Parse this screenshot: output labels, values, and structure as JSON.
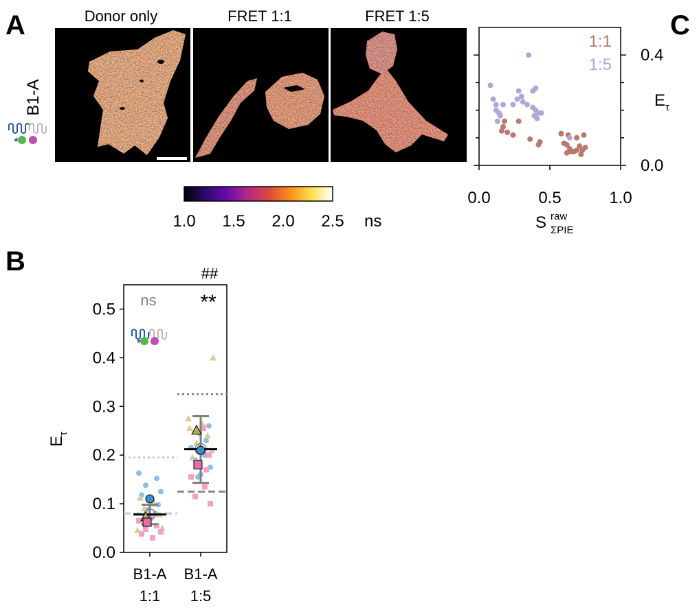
{
  "panels": {
    "a": {
      "letter": "A",
      "row_label": "B1-A",
      "image_titles": [
        "Donor only",
        "FRET 1:1",
        "FRET 1:5"
      ],
      "colorbar": {
        "ticks": [
          "1.0",
          "1.5",
          "2.0",
          "2.5"
        ],
        "unit": "ns",
        "colors": [
          "#000000",
          "#2a0a6e",
          "#6a0aa8",
          "#b02a8c",
          "#e0463c",
          "#f7901a",
          "#fde24a",
          "#ffffff"
        ]
      }
    },
    "b": {
      "letter": "B",
      "ylabel_main": "E",
      "ylabel_sub": "τ",
      "annotations": {
        "ns": "ns",
        "double_star": "**",
        "hash": "##"
      },
      "categories": [
        {
          "line1": "B1-A",
          "line2": "1:1"
        },
        {
          "line1": "B1-A",
          "line2": "1:5"
        }
      ]
    },
    "c": {
      "letter": "C",
      "ylabel_main": "E",
      "ylabel_sub": "τ",
      "xlabel_main": "S",
      "xlabel_sup": "raw",
      "xlabel_sub": "ΣPIE",
      "legend": [
        {
          "label": "1:1",
          "color": "#b97a6e"
        },
        {
          "label": "1:5",
          "color": "#b4a6d4"
        }
      ]
    }
  },
  "chart_data": [
    {
      "type": "strip",
      "panel": "B",
      "ylabel": "Eτ",
      "ylim": [
        0,
        0.55
      ],
      "yticks": [
        0.0,
        0.1,
        0.2,
        0.3,
        0.4,
        0.5
      ],
      "categories": [
        "B1-A 1:1",
        "B1-A 1:5"
      ],
      "colors": {
        "blue": "#8fbfe0",
        "pink": "#f4a0c8",
        "tan": "#d8cc9a",
        "blue_dark": "#3b8ed0",
        "pink_dark": "#e070a8",
        "tan_dark": "#b8a858"
      },
      "points": [
        {
          "cat": 0,
          "y": 0.163,
          "c": "blue"
        },
        {
          "cat": 0,
          "y": 0.152,
          "c": "blue"
        },
        {
          "cat": 0,
          "y": 0.138,
          "c": "blue"
        },
        {
          "cat": 0,
          "y": 0.125,
          "c": "blue"
        },
        {
          "cat": 0,
          "y": 0.118,
          "c": "blue"
        },
        {
          "cat": 0,
          "y": 0.105,
          "c": "blue"
        },
        {
          "cat": 0,
          "y": 0.098,
          "c": "blue"
        },
        {
          "cat": 0,
          "y": 0.088,
          "c": "blue"
        },
        {
          "cat": 0,
          "y": 0.08,
          "c": "blue"
        },
        {
          "cat": 0,
          "y": 0.112,
          "c": "tan"
        },
        {
          "cat": 0,
          "y": 0.1,
          "c": "tan"
        },
        {
          "cat": 0,
          "y": 0.09,
          "c": "tan"
        },
        {
          "cat": 0,
          "y": 0.078,
          "c": "tan"
        },
        {
          "cat": 0,
          "y": 0.07,
          "c": "tan"
        },
        {
          "cat": 0,
          "y": 0.06,
          "c": "tan"
        },
        {
          "cat": 0,
          "y": 0.05,
          "c": "tan"
        },
        {
          "cat": 0,
          "y": 0.045,
          "c": "tan"
        },
        {
          "cat": 0,
          "y": 0.075,
          "c": "pink"
        },
        {
          "cat": 0,
          "y": 0.065,
          "c": "pink"
        },
        {
          "cat": 0,
          "y": 0.055,
          "c": "pink"
        },
        {
          "cat": 0,
          "y": 0.048,
          "c": "pink"
        },
        {
          "cat": 0,
          "y": 0.042,
          "c": "pink"
        },
        {
          "cat": 0,
          "y": 0.038,
          "c": "pink"
        },
        {
          "cat": 0,
          "y": 0.03,
          "c": "pink"
        },
        {
          "cat": 1,
          "y": 0.26,
          "c": "blue"
        },
        {
          "cat": 1,
          "y": 0.245,
          "c": "blue"
        },
        {
          "cat": 1,
          "y": 0.23,
          "c": "blue"
        },
        {
          "cat": 1,
          "y": 0.215,
          "c": "blue"
        },
        {
          "cat": 1,
          "y": 0.2,
          "c": "blue"
        },
        {
          "cat": 1,
          "y": 0.19,
          "c": "blue"
        },
        {
          "cat": 1,
          "y": 0.175,
          "c": "blue"
        },
        {
          "cat": 1,
          "y": 0.16,
          "c": "blue"
        },
        {
          "cat": 1,
          "y": 0.155,
          "c": "blue"
        },
        {
          "cat": 1,
          "y": 0.4,
          "c": "tan"
        },
        {
          "cat": 1,
          "y": 0.275,
          "c": "tan"
        },
        {
          "cat": 1,
          "y": 0.265,
          "c": "tan"
        },
        {
          "cat": 1,
          "y": 0.255,
          "c": "tan"
        },
        {
          "cat": 1,
          "y": 0.24,
          "c": "tan"
        },
        {
          "cat": 1,
          "y": 0.225,
          "c": "tan"
        },
        {
          "cat": 1,
          "y": 0.21,
          "c": "tan"
        },
        {
          "cat": 1,
          "y": 0.195,
          "c": "tan"
        },
        {
          "cat": 1,
          "y": 0.255,
          "c": "pink"
        },
        {
          "cat": 1,
          "y": 0.2,
          "c": "pink"
        },
        {
          "cat": 1,
          "y": 0.185,
          "c": "pink"
        },
        {
          "cat": 1,
          "y": 0.17,
          "c": "pink"
        },
        {
          "cat": 1,
          "y": 0.155,
          "c": "pink"
        },
        {
          "cat": 1,
          "y": 0.135,
          "c": "pink"
        },
        {
          "cat": 1,
          "y": 0.115,
          "c": "pink"
        },
        {
          "cat": 1,
          "y": 0.1,
          "c": "pink"
        }
      ],
      "series_means": [
        {
          "cat": 0,
          "y": 0.11,
          "c": "blue_dark",
          "shape": "circle"
        },
        {
          "cat": 0,
          "y": 0.072,
          "c": "tan_dark",
          "shape": "triangle"
        },
        {
          "cat": 0,
          "y": 0.062,
          "c": "pink_dark",
          "shape": "square"
        },
        {
          "cat": 1,
          "y": 0.21,
          "c": "blue_dark",
          "shape": "circle"
        },
        {
          "cat": 1,
          "y": 0.25,
          "c": "tan_dark",
          "shape": "triangle"
        },
        {
          "cat": 1,
          "y": 0.18,
          "c": "pink_dark",
          "shape": "square"
        }
      ],
      "group_means": [
        {
          "cat": 0,
          "mean": 0.078,
          "sd_low": 0.058,
          "sd_high": 0.098
        },
        {
          "cat": 1,
          "mean": 0.212,
          "sd_low": 0.143,
          "sd_high": 0.28
        }
      ],
      "reference_lines": [
        {
          "cat": 0,
          "y": 0.195,
          "style": "dotted"
        },
        {
          "cat": 0,
          "y": 0.08,
          "style": "dashed"
        },
        {
          "cat": 1,
          "y": 0.325,
          "style": "dotted"
        },
        {
          "cat": 1,
          "y": 0.125,
          "style": "dashed"
        }
      ]
    },
    {
      "type": "scatter",
      "panel": "C",
      "xlabel": "S raw ΣPIE",
      "ylabel": "Eτ",
      "xlim": [
        0,
        1
      ],
      "ylim": [
        0,
        0.5
      ],
      "xticks": [
        0.0,
        0.5,
        1.0
      ],
      "yticks": [
        0.0,
        0.4
      ],
      "yminor": [
        0.1,
        0.2,
        0.3
      ],
      "series": [
        {
          "name": "1:1",
          "color": "#b97a6e",
          "points": [
            [
              0.18,
              0.16
            ],
            [
              0.17,
              0.14
            ],
            [
              0.16,
              0.125
            ],
            [
              0.2,
              0.12
            ],
            [
              0.24,
              0.11
            ],
            [
              0.28,
              0.16
            ],
            [
              0.36,
              0.095
            ],
            [
              0.43,
              0.085
            ],
            [
              0.42,
              0.075
            ],
            [
              0.58,
              0.115
            ],
            [
              0.63,
              0.11
            ],
            [
              0.69,
              0.1
            ],
            [
              0.74,
              0.11
            ],
            [
              0.6,
              0.08
            ],
            [
              0.62,
              0.075
            ],
            [
              0.64,
              0.06
            ],
            [
              0.65,
              0.05
            ],
            [
              0.67,
              0.05
            ],
            [
              0.69,
              0.055
            ],
            [
              0.71,
              0.07
            ],
            [
              0.73,
              0.055
            ],
            [
              0.75,
              0.065
            ],
            [
              0.72,
              0.04
            ],
            [
              0.62,
              0.045
            ]
          ]
        },
        {
          "name": "1:5",
          "color": "#b4a6d4",
          "points": [
            [
              0.08,
              0.29
            ],
            [
              0.1,
              0.24
            ],
            [
              0.12,
              0.22
            ],
            [
              0.12,
              0.2
            ],
            [
              0.14,
              0.19
            ],
            [
              0.15,
              0.18
            ],
            [
              0.17,
              0.22
            ],
            [
              0.13,
              0.16
            ],
            [
              0.24,
              0.22
            ],
            [
              0.28,
              0.27
            ],
            [
              0.27,
              0.24
            ],
            [
              0.3,
              0.25
            ],
            [
              0.31,
              0.23
            ],
            [
              0.34,
              0.22
            ],
            [
              0.35,
              0.4
            ],
            [
              0.38,
              0.27
            ],
            [
              0.4,
              0.28
            ],
            [
              0.38,
              0.21
            ],
            [
              0.4,
              0.2
            ],
            [
              0.42,
              0.19
            ],
            [
              0.39,
              0.18
            ],
            [
              0.41,
              0.17
            ],
            [
              0.44,
              0.19
            ],
            [
              0.64,
              0.1
            ]
          ]
        }
      ]
    }
  ]
}
